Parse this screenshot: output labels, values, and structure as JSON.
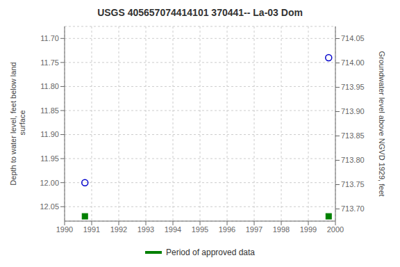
{
  "chart_data": {
    "type": "scatter",
    "title": "USGS 405657074414101 370441-- La-03 Dom",
    "x": [
      1990.75,
      1999.75
    ],
    "series": [
      {
        "color": "#0000cc",
        "marker": "circle",
        "values": [
          12.0,
          11.74
        ]
      },
      {
        "name": "Period of approved data",
        "color": "#008000",
        "marker": "square",
        "values": [
          12.07,
          12.07
        ]
      }
    ],
    "xlim": [
      1990,
      2000
    ],
    "xticks": [
      1990,
      1991,
      1992,
      1993,
      1994,
      1995,
      1996,
      1997,
      1998,
      1999,
      2000
    ],
    "ylim": [
      12.08,
      11.675
    ],
    "yticks": [
      {
        "value": 11.7,
        "label": "11.70"
      },
      11.75,
      {
        "value": 11.8,
        "label": "11.80"
      },
      11.85,
      {
        "value": 11.9,
        "label": "11.90"
      },
      11.95,
      {
        "value": 12.0,
        "label": "12.00"
      },
      12.05
    ],
    "y2lim": [
      713.675,
      714.075
    ],
    "y2ticks": [
      714.05,
      {
        "value": 714.0,
        "label": "714.00"
      },
      713.95,
      {
        "value": 713.9,
        "label": "713.90"
      },
      713.85,
      {
        "value": 713.8,
        "label": "713.80"
      },
      713.75,
      {
        "value": 713.7,
        "label": "713.70"
      }
    ],
    "ylabel": "Depth to water level, feet below land\n surface",
    "y2label": "Groundwater level above NGVD 1929, feet",
    "grid": true,
    "legend": "bottom"
  }
}
